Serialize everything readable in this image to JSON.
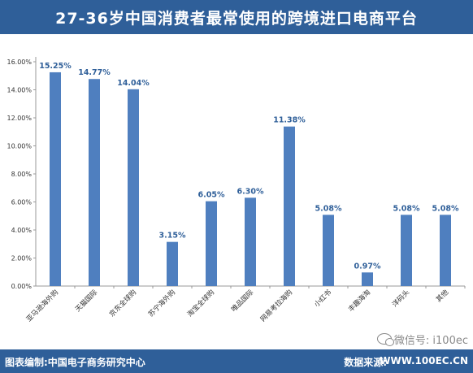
{
  "chart_data": {
    "type": "bar",
    "title": "27-36岁中国消费者最常使用的跨境进口电商平台",
    "categories": [
      "亚马逊海外购",
      "天猫国际",
      "京东全球购",
      "苏宁海外购",
      "淘宝全球购",
      "唯品国际",
      "网易考拉海购",
      "小红书",
      "丰趣海淘",
      "洋码头",
      "其他"
    ],
    "values": [
      15.25,
      14.77,
      14.04,
      3.15,
      6.05,
      6.3,
      11.38,
      5.08,
      0.97,
      5.08,
      5.08
    ],
    "data_labels": [
      "15.25%",
      "14.77%",
      "14.04%",
      "3.15%",
      "6.05%",
      "6.30%",
      "11.38%",
      "5.08%",
      "0.97%",
      "5.08%",
      "5.08%"
    ],
    "ylim": [
      0,
      16
    ],
    "yticks": [
      0,
      2,
      4,
      6,
      8,
      10,
      12,
      14,
      16
    ],
    "ytick_labels": [
      "0.00%",
      "2.00%",
      "4.00%",
      "6.00%",
      "8.00%",
      "10.00%",
      "12.00%",
      "14.00%",
      "16.00%"
    ],
    "xlabel": "",
    "ylabel": "",
    "grid": false,
    "bar_color": "#4f7fbf",
    "label_color": "#2f5f99"
  },
  "footer": {
    "source_left": "图表编制:中国电子商务研究中心",
    "source_right": "数据来源:"
  },
  "watermark": {
    "text": "微信号: i100ec",
    "url": "WWW.100EC.CN"
  }
}
